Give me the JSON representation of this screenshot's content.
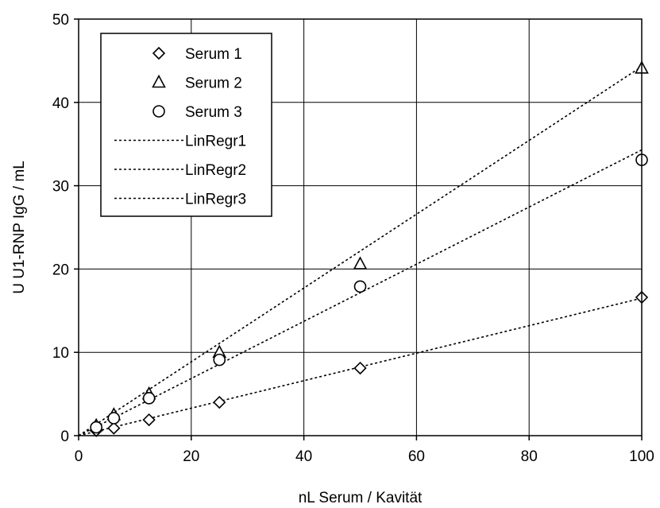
{
  "chart_data": {
    "type": "scatter",
    "xlabel": "nL Serum / Kavität",
    "ylabel": "U U1-RNP IgG / mL",
    "xlim": [
      0,
      100
    ],
    "ylim": [
      0,
      50
    ],
    "xticks": [
      0,
      20,
      40,
      60,
      80,
      100
    ],
    "yticks": [
      0,
      10,
      20,
      30,
      40,
      50
    ],
    "grid": true,
    "legend_position": "top-left",
    "series": [
      {
        "name": "Serum 1",
        "kind": "points",
        "marker": "diamond",
        "x": [
          3.125,
          6.25,
          12.5,
          25,
          50,
          100
        ],
        "y": [
          0.6,
          0.9,
          1.9,
          4.0,
          8.1,
          16.6
        ]
      },
      {
        "name": "Serum 2",
        "kind": "points",
        "marker": "triangle",
        "x": [
          3.125,
          6.25,
          12.5,
          25,
          50,
          100
        ],
        "y": [
          1.2,
          2.5,
          5.0,
          10.0,
          20.6,
          44.1
        ]
      },
      {
        "name": "Serum 3",
        "kind": "points",
        "marker": "circle",
        "x": [
          3.125,
          6.25,
          12.5,
          25,
          50,
          100
        ],
        "y": [
          1.0,
          2.1,
          4.5,
          9.1,
          17.9,
          33.1
        ]
      },
      {
        "name": "LinRegr1",
        "kind": "line",
        "x": [
          0,
          100
        ],
        "y": [
          0,
          16.5
        ]
      },
      {
        "name": "LinRegr2",
        "kind": "line",
        "x": [
          0,
          100
        ],
        "y": [
          0,
          44.3
        ]
      },
      {
        "name": "LinRegr3",
        "kind": "line",
        "x": [
          0,
          100
        ],
        "y": [
          0,
          34.3
        ]
      }
    ]
  }
}
